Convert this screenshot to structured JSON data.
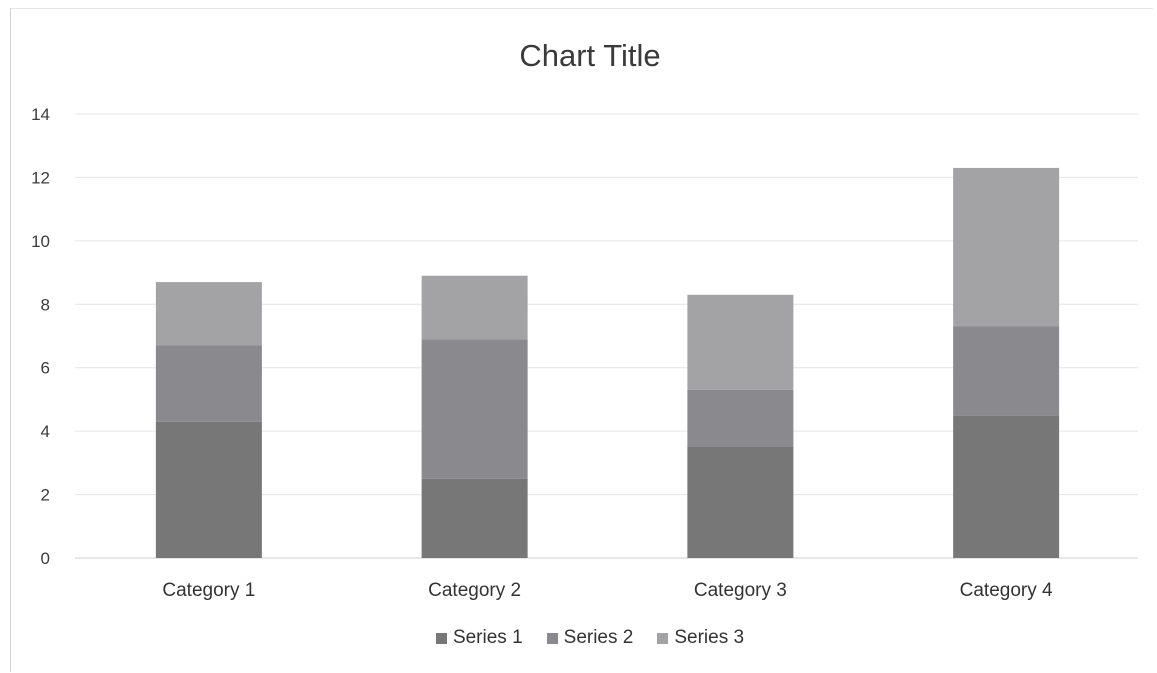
{
  "chart_data": {
    "type": "bar",
    "stacked": true,
    "title": "Chart Title",
    "categories": [
      "Category 1",
      "Category 2",
      "Category 3",
      "Category 4"
    ],
    "series": [
      {
        "name": "Series 1",
        "values": [
          4.3,
          2.5,
          3.5,
          4.5
        ],
        "color": "#777777"
      },
      {
        "name": "Series 2",
        "values": [
          2.4,
          4.4,
          1.8,
          2.8
        ],
        "color": "#8a8a8e"
      },
      {
        "name": "Series 3",
        "values": [
          2.0,
          2.0,
          3.0,
          5.0
        ],
        "color": "#a3a3a6"
      }
    ],
    "ylim": [
      0,
      14
    ],
    "yticks": [
      0,
      2,
      4,
      6,
      8,
      10,
      12,
      14
    ],
    "grid": true,
    "legend": "bottom"
  }
}
